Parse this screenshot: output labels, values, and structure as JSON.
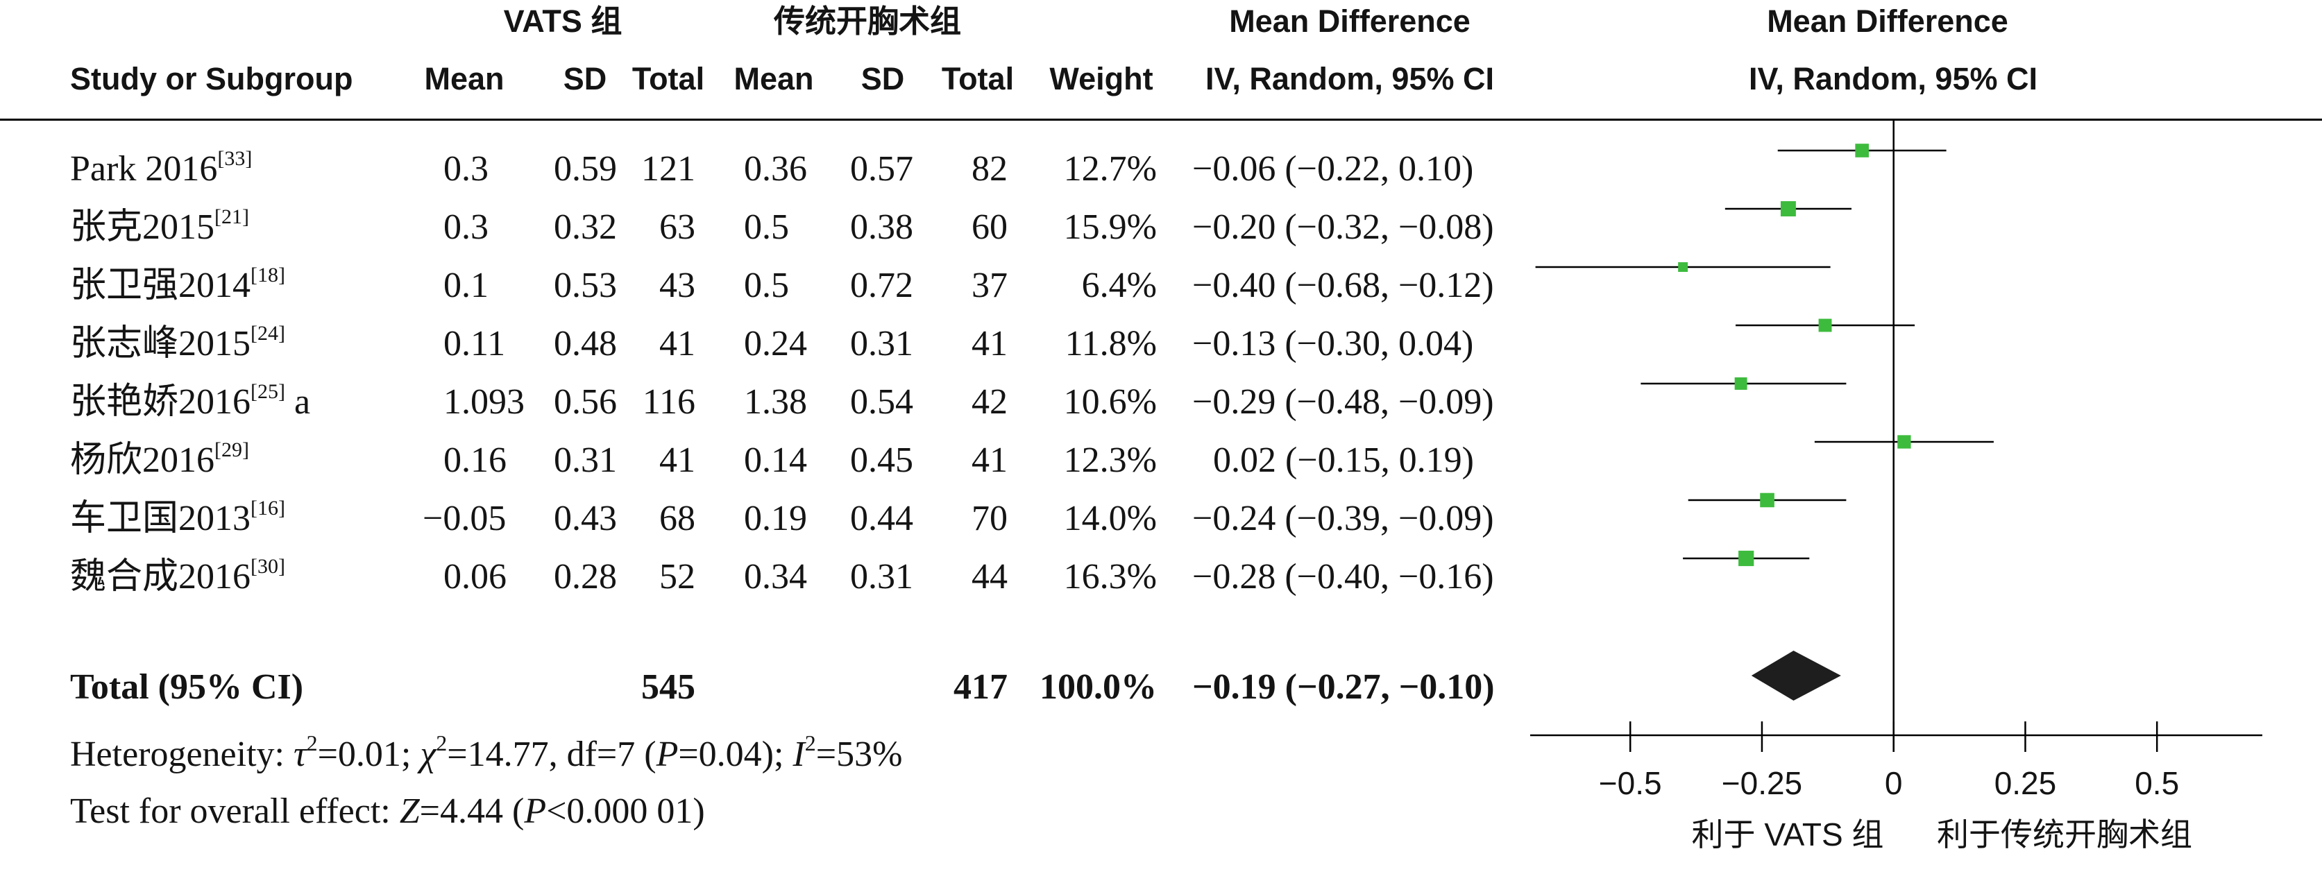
{
  "colors": {
    "marker": "#3dbb3d",
    "diamond": "#1e1e1e",
    "line": "#000000"
  },
  "chart_data": {
    "type": "scatter",
    "headers": {
      "group_experimental": "VATS 组",
      "group_control": "传统开胸术组",
      "effect_title": "Mean Difference",
      "plot_title": "Mean Difference",
      "col_study": "Study or Subgroup",
      "col_exp_mean": "Mean",
      "col_exp_sd": "SD",
      "col_exp_total": "Total",
      "col_ctrl_mean": "Mean",
      "col_ctrl_sd": "SD",
      "col_ctrl_total": "Total",
      "col_weight": "Weight",
      "col_effect_method": "IV, Random, 95% CI",
      "plot_method": "IV, Random, 95% CI"
    },
    "studies": [
      {
        "study": "Park 2016",
        "ref": "[33]",
        "suffix": "",
        "exp_mean": "0.3",
        "exp_sd": "0.59",
        "exp_total": "121",
        "ctrl_mean": "0.36",
        "ctrl_sd": "0.57",
        "ctrl_total": "82",
        "weight": "12.7%",
        "ci_text": "−0.06 (−0.22, 0.10)",
        "md": -0.06,
        "ci_low": -0.22,
        "ci_high": 0.1
      },
      {
        "study": "张克2015",
        "ref": "[21]",
        "suffix": "",
        "exp_mean": "0.3",
        "exp_sd": "0.32",
        "exp_total": "63",
        "ctrl_mean": "0.5",
        "ctrl_sd": "0.38",
        "ctrl_total": "60",
        "weight": "15.9%",
        "ci_text": "−0.20 (−0.32, −0.08)",
        "md": -0.2,
        "ci_low": -0.32,
        "ci_high": -0.08
      },
      {
        "study": "张卫强2014",
        "ref": "[18]",
        "suffix": "",
        "exp_mean": "0.1",
        "exp_sd": "0.53",
        "exp_total": "43",
        "ctrl_mean": "0.5",
        "ctrl_sd": "0.72",
        "ctrl_total": "37",
        "weight": "6.4%",
        "ci_text": "−0.40 (−0.68, −0.12)",
        "md": -0.4,
        "ci_low": -0.68,
        "ci_high": -0.12
      },
      {
        "study": "张志峰2015",
        "ref": "[24]",
        "suffix": "",
        "exp_mean": "0.11",
        "exp_sd": "0.48",
        "exp_total": "41",
        "ctrl_mean": "0.24",
        "ctrl_sd": "0.31",
        "ctrl_total": "41",
        "weight": "11.8%",
        "ci_text": "−0.13 (−0.30, 0.04)",
        "md": -0.13,
        "ci_low": -0.3,
        "ci_high": 0.04
      },
      {
        "study": "张艳娇2016",
        "ref": "[25]",
        "suffix": " a",
        "exp_mean": "1.093",
        "exp_sd": "0.56",
        "exp_total": "116",
        "ctrl_mean": "1.38",
        "ctrl_sd": "0.54",
        "ctrl_total": "42",
        "weight": "10.6%",
        "ci_text": "−0.29 (−0.48, −0.09)",
        "md": -0.29,
        "ci_low": -0.48,
        "ci_high": -0.09
      },
      {
        "study": "杨欣2016",
        "ref": "[29]",
        "suffix": "",
        "exp_mean": "0.16",
        "exp_sd": "0.31",
        "exp_total": "41",
        "ctrl_mean": "0.14",
        "ctrl_sd": "0.45",
        "ctrl_total": "41",
        "weight": "12.3%",
        "ci_text": "0.02 (−0.15, 0.19)",
        "md": 0.02,
        "ci_low": -0.15,
        "ci_high": 0.19
      },
      {
        "study": "车卫国2013",
        "ref": "[16]",
        "suffix": "",
        "exp_mean": "−0.05",
        "exp_sd": "0.43",
        "exp_total": "68",
        "ctrl_mean": "0.19",
        "ctrl_sd": "0.44",
        "ctrl_total": "70",
        "weight": "14.0%",
        "ci_text": "−0.24 (−0.39, −0.09)",
        "md": -0.24,
        "ci_low": -0.39,
        "ci_high": -0.09
      },
      {
        "study": "魏合成2016",
        "ref": "[30]",
        "suffix": "",
        "exp_mean": "0.06",
        "exp_sd": "0.28",
        "exp_total": "52",
        "ctrl_mean": "0.34",
        "ctrl_sd": "0.31",
        "ctrl_total": "44",
        "weight": "16.3%",
        "ci_text": "−0.28 (−0.40, −0.16)",
        "md": -0.28,
        "ci_low": -0.4,
        "ci_high": -0.16
      }
    ],
    "total": {
      "label": "Total (95% CI)",
      "exp_total": "545",
      "ctrl_total": "417",
      "weight": "100.0%",
      "ci_text": "−0.19 (−0.27, −0.10)",
      "md": -0.19,
      "ci_low": -0.27,
      "ci_high": -0.1
    },
    "footer": {
      "heterogeneity": [
        {
          "text": "Heterogeneity: "
        },
        {
          "text": "τ",
          "style": "italic"
        },
        {
          "text": "2",
          "style": "sup"
        },
        {
          "text": "=0.01; "
        },
        {
          "text": "χ",
          "style": "italic"
        },
        {
          "text": "2",
          "style": "sup"
        },
        {
          "text": "=14.77, df=7 ("
        },
        {
          "text": "P",
          "style": "italic"
        },
        {
          "text": "=0.04); "
        },
        {
          "text": "I",
          "style": "italic"
        },
        {
          "text": "2",
          "style": "sup"
        },
        {
          "text": "=53%"
        }
      ],
      "overall_effect": [
        {
          "text": "Test for overall effect: "
        },
        {
          "text": "Z",
          "style": "italic"
        },
        {
          "text": "=4.44 ("
        },
        {
          "text": "P",
          "style": "italic"
        },
        {
          "text": "<0.000 01)"
        }
      ]
    },
    "x_axis": {
      "xlim": [
        -0.69,
        0.7
      ],
      "ticks": [
        -0.5,
        -0.25,
        0,
        0.25,
        0.5
      ],
      "tick_labels": [
        "−0.5",
        "−0.25",
        "0",
        "0.25",
        "0.5"
      ],
      "favours_left": "利于 VATS 组",
      "favours_right": "利于传统开胸术组"
    },
    "reference_line": 0,
    "grid": false
  }
}
